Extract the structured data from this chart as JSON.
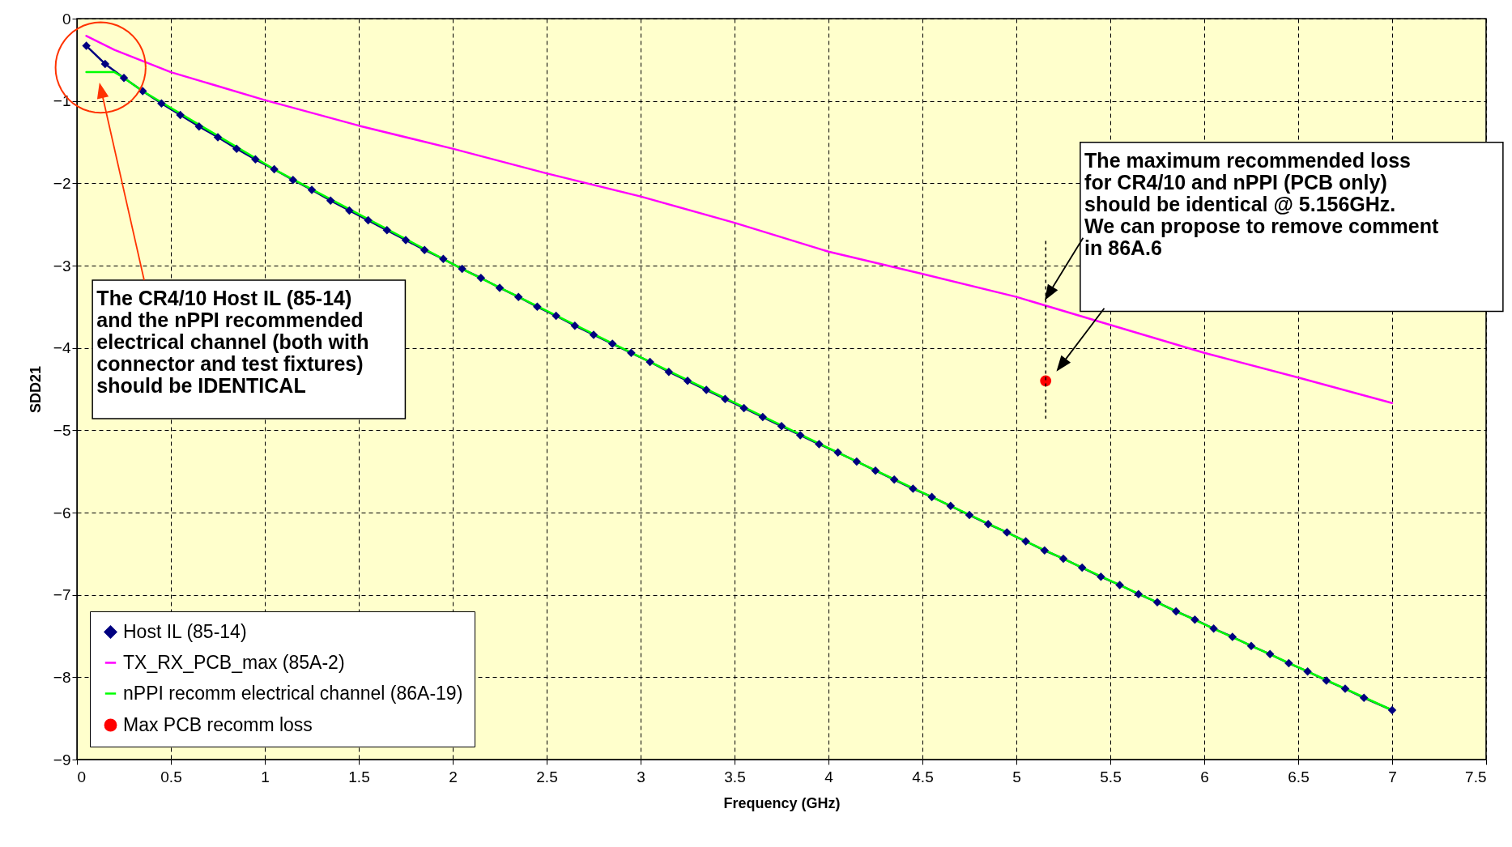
{
  "chart_data": {
    "type": "line",
    "xlabel": "Frequency (GHz)",
    "ylabel": "SDD21",
    "xlim": [
      0,
      7.5
    ],
    "xticks": [
      0,
      0.5,
      1,
      1.5,
      2,
      2.5,
      3,
      3.5,
      4,
      4.5,
      5,
      5.5,
      6,
      6.5,
      7,
      7.5
    ],
    "ylim": [
      -9,
      0
    ],
    "yticks": [
      -9,
      -8,
      -7,
      -6,
      -5,
      -4,
      -3,
      -2,
      -1,
      0
    ],
    "grid": true,
    "legend": "bottom left",
    "series": [
      {
        "name": "Host IL (85-14)",
        "color": "#000080",
        "marker": "diamond",
        "x": [
          0.05,
          0.15,
          0.25,
          0.35,
          0.45,
          0.55,
          0.65,
          0.75,
          0.85,
          0.95,
          1.05,
          1.15,
          1.25,
          1.35,
          1.45,
          1.55,
          1.65,
          1.75,
          1.85,
          1.95,
          2.05,
          2.15,
          2.25,
          2.35,
          2.45,
          2.55,
          2.65,
          2.75,
          2.85,
          2.95,
          3.05,
          3.15,
          3.25,
          3.35,
          3.45,
          3.55,
          3.65,
          3.75,
          3.85,
          3.95,
          4.05,
          4.15,
          4.25,
          4.35,
          4.45,
          4.55,
          4.65,
          4.75,
          4.85,
          4.95,
          5.05,
          5.15,
          5.25,
          5.35,
          5.45,
          5.55,
          5.65,
          5.75,
          5.85,
          5.95,
          6.05,
          6.15,
          6.25,
          6.35,
          6.45,
          6.55,
          6.65,
          6.75,
          6.85,
          7.0
        ],
        "values": [
          -0.33,
          -0.55,
          -0.72,
          -0.88,
          -1.03,
          -1.17,
          -1.31,
          -1.44,
          -1.58,
          -1.71,
          -1.83,
          -1.96,
          -2.08,
          -2.21,
          -2.33,
          -2.45,
          -2.57,
          -2.69,
          -2.81,
          -2.92,
          -3.04,
          -3.15,
          -3.27,
          -3.38,
          -3.5,
          -3.61,
          -3.73,
          -3.84,
          -3.95,
          -4.06,
          -4.17,
          -4.29,
          -4.4,
          -4.51,
          -4.62,
          -4.73,
          -4.84,
          -4.95,
          -5.06,
          -5.17,
          -5.27,
          -5.38,
          -5.49,
          -5.6,
          -5.71,
          -5.81,
          -5.92,
          -6.03,
          -6.14,
          -6.24,
          -6.35,
          -6.46,
          -6.56,
          -6.67,
          -6.78,
          -6.88,
          -6.99,
          -7.09,
          -7.2,
          -7.3,
          -7.41,
          -7.51,
          -7.62,
          -7.72,
          -7.83,
          -7.93,
          -8.04,
          -8.14,
          -8.25,
          -8.4
        ]
      },
      {
        "name": "TX_RX_PCB_max (85A-2)",
        "color": "#ff00ff",
        "marker": "none",
        "x": [
          0.05,
          0.2,
          0.5,
          1,
          1.5,
          2,
          2.5,
          3,
          3.5,
          4,
          4.5,
          5,
          5.5,
          6,
          6.5,
          7
        ],
        "values": [
          -0.21,
          -0.38,
          -0.65,
          -0.99,
          -1.3,
          -1.58,
          -1.88,
          -2.16,
          -2.48,
          -2.83,
          -3.1,
          -3.38,
          -3.72,
          -4.06,
          -4.36,
          -4.67
        ]
      },
      {
        "name": "nPPI recomm electrical channel (86A-19)",
        "color": "#00ff00",
        "marker": "none",
        "x": [
          0.05,
          0.2,
          0.25,
          0.35,
          1.05,
          2.05,
          3.05,
          4.05,
          5.05,
          6.05,
          7.0
        ],
        "values": [
          -0.65,
          -0.65,
          -0.72,
          -0.88,
          -1.83,
          -3.04,
          -4.17,
          -5.27,
          -6.35,
          -7.41,
          -8.4
        ]
      },
      {
        "name": "Max PCB recomm loss",
        "type": "scatter",
        "color": "#ff0000",
        "marker": "circle",
        "x": [
          5.156
        ],
        "values": [
          -4.4
        ]
      }
    ],
    "annotations": [
      "The CR4/10 Host IL (85-14)\nand the nPPI recommended\nelectrical channel (both with\nconnector and test fixtures)\nshould be IDENTICAL",
      "The maximum recommended loss\nfor CR4/10 and nPPI (PCB only)\nshould be identical @ 5.156GHz.\nWe can propose to remove comment\nin 86A.6"
    ]
  }
}
